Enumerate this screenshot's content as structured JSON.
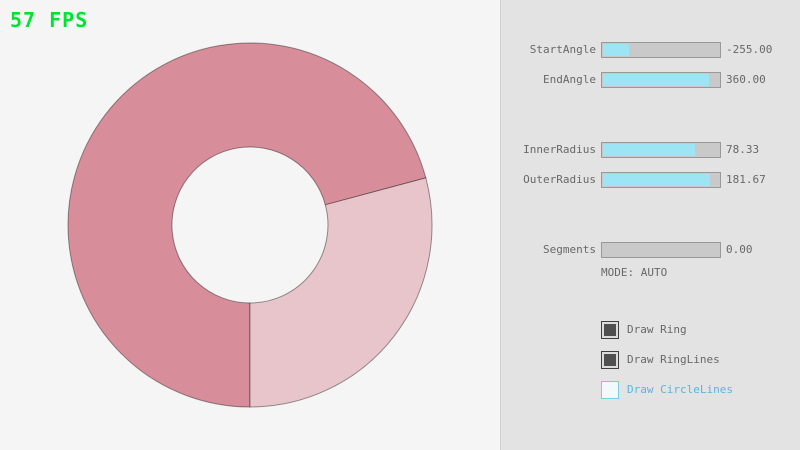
{
  "app": {
    "fps_label": "57 FPS"
  },
  "colors": {
    "fps_green": "#00e430",
    "ring_dark": "#d88e9a",
    "ring_light": "#e8c5cb",
    "ring_outline": "rgba(0,0,0,0.4)",
    "slider_fill": "#9de4f5",
    "checkbox_checked": "#4f4f4f",
    "focused_blue": "#56b7dc"
  },
  "sliders": [
    {
      "label": "StartAngle",
      "value": "-255.00",
      "fill_pct": 21.7
    },
    {
      "label": "EndAngle",
      "value": "360.00",
      "fill_pct": 90
    },
    {
      "label": "InnerRadius",
      "value": "78.33",
      "fill_pct": 78.3
    },
    {
      "label": "OuterRadius",
      "value": "181.67",
      "fill_pct": 90.8
    },
    {
      "label": "Segments",
      "value": "0.00",
      "fill_pct": 0
    }
  ],
  "mode_text": "MODE: AUTO",
  "checkboxes": [
    {
      "label": "Draw Ring",
      "checked": true
    },
    {
      "label": "Draw RingLines",
      "checked": true
    },
    {
      "label": "Draw CircleLines",
      "checked": false
    }
  ]
}
